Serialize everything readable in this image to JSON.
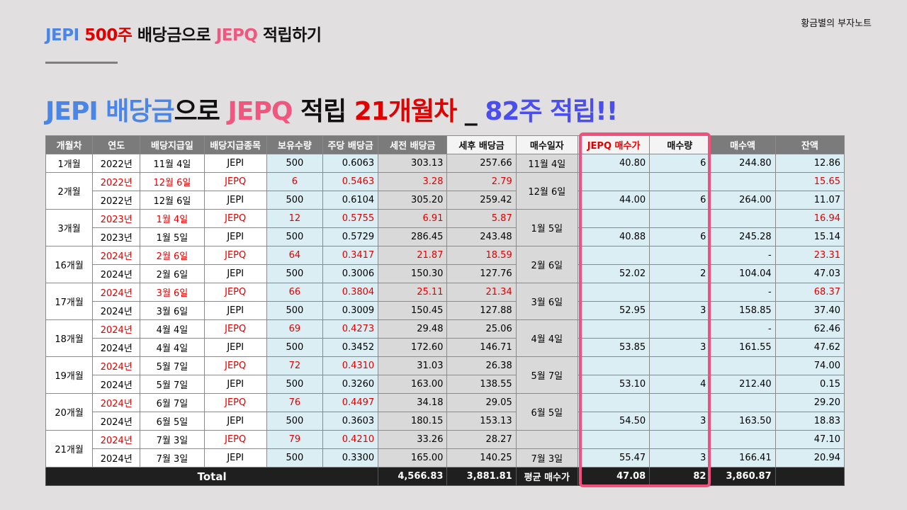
{
  "slide": {
    "top_title": [
      {
        "text": "JEPI",
        "color": "#4a86e8"
      },
      {
        "text": " 500주",
        "color": "#e00000"
      },
      {
        "text": " 배당금으로 ",
        "color": "#111111"
      },
      {
        "text": "JEPQ",
        "color": "#f0567e"
      },
      {
        "text": " 적립하기",
        "color": "#111111"
      }
    ],
    "brand": "황금별의 부자노트",
    "headline": [
      {
        "text": "JEPI 배당금",
        "color": "#4a86e8"
      },
      {
        "text": "으로 ",
        "color": "#111111"
      },
      {
        "text": "JEPQ",
        "color": "#f0567e"
      },
      {
        "text": " 적립 ",
        "color": "#111111"
      },
      {
        "text": "21개월차",
        "color": "#e00000"
      },
      {
        "text": " _ ",
        "color": "#111111"
      },
      {
        "text": "82주 적립!!",
        "color": "#4a4ef0"
      }
    ],
    "highlight_color": "#f0507e"
  },
  "table": {
    "headers": [
      "개월차",
      "연도",
      "배당지급일",
      "배당지급종목",
      "보유수량",
      "주당 배당금",
      "세전 배당금",
      "세후 배당금",
      "매수일자",
      "JEPQ 매수가",
      "매수량",
      "매수액",
      "잔액"
    ],
    "groups": [
      {
        "month": "1개월",
        "buy_date": "11월 4일",
        "rows": [
          {
            "year": "2022년",
            "pay_date": "11월 4일",
            "ticker": "JEPI",
            "shares": "500",
            "dps": "0.6063",
            "pretax": "303.13",
            "posttax": "257.66",
            "price": "40.80",
            "qty": "6",
            "amount": "244.80",
            "balance": "12.86",
            "red": false
          }
        ]
      },
      {
        "month": "2개월",
        "buy_date": "12월 6일",
        "rows": [
          {
            "year": "2022년",
            "pay_date": "12월 6일",
            "ticker": "JEPQ",
            "shares": "6",
            "dps": "0.5463",
            "pretax": "3.28",
            "posttax": "2.79",
            "price": "",
            "qty": "",
            "amount": "",
            "balance": "15.65",
            "red": true
          },
          {
            "year": "2022년",
            "pay_date": "12월 6일",
            "ticker": "JEPI",
            "shares": "500",
            "dps": "0.6104",
            "pretax": "305.20",
            "posttax": "259.42",
            "price": "44.00",
            "qty": "6",
            "amount": "264.00",
            "balance": "11.07",
            "red": false
          }
        ]
      },
      {
        "month": "3개월",
        "buy_date": "1월 5일",
        "rows": [
          {
            "year": "2023년",
            "pay_date": "1월 4일",
            "ticker": "JEPQ",
            "shares": "12",
            "dps": "0.5755",
            "pretax": "6.91",
            "posttax": "5.87",
            "price": "",
            "qty": "",
            "amount": "",
            "balance": "16.94",
            "red": true
          },
          {
            "year": "2023년",
            "pay_date": "1월 5일",
            "ticker": "JEPI",
            "shares": "500",
            "dps": "0.5729",
            "pretax": "286.45",
            "posttax": "243.48",
            "price": "40.88",
            "qty": "6",
            "amount": "245.28",
            "balance": "15.14",
            "red": false
          }
        ]
      },
      {
        "month": "16개월",
        "buy_date": "2월 6일",
        "rows": [
          {
            "year": "2024년",
            "pay_date": "2월 6일",
            "ticker": "JEPQ",
            "shares": "64",
            "dps": "0.3417",
            "pretax": "21.87",
            "posttax": "18.59",
            "price": "",
            "qty": "",
            "amount": "-",
            "balance": "23.31",
            "red": true
          },
          {
            "year": "2024년",
            "pay_date": "2월 6일",
            "ticker": "JEPI",
            "shares": "500",
            "dps": "0.3006",
            "pretax": "150.30",
            "posttax": "127.76",
            "price": "52.02",
            "qty": "2",
            "amount": "104.04",
            "balance": "47.03",
            "red": false
          }
        ]
      },
      {
        "month": "17개월",
        "buy_date": "3월 6일",
        "rows": [
          {
            "year": "2024년",
            "pay_date": "3월 6일",
            "ticker": "JEPQ",
            "shares": "66",
            "dps": "0.3804",
            "pretax": "25.11",
            "posttax": "21.34",
            "price": "",
            "qty": "",
            "amount": "-",
            "balance": "68.37",
            "red": true
          },
          {
            "year": "2024년",
            "pay_date": "3월 6일",
            "ticker": "JEPI",
            "shares": "500",
            "dps": "0.3009",
            "pretax": "150.45",
            "posttax": "127.88",
            "price": "52.95",
            "qty": "3",
            "amount": "158.85",
            "balance": "37.40",
            "red": false
          }
        ]
      },
      {
        "month": "18개월",
        "buy_date": "4월 4일",
        "rows": [
          {
            "year": "2024년",
            "pay_date": "4월 4일",
            "ticker": "JEPQ",
            "shares": "69",
            "dps": "0.4273",
            "pretax": "29.48",
            "posttax": "25.06",
            "price": "",
            "qty": "",
            "amount": "-",
            "balance": "62.46",
            "red": true,
            "partial_red": true
          },
          {
            "year": "2024년",
            "pay_date": "4월 4일",
            "ticker": "JEPI",
            "shares": "500",
            "dps": "0.3452",
            "pretax": "172.60",
            "posttax": "146.71",
            "price": "53.85",
            "qty": "3",
            "amount": "161.55",
            "balance": "47.62",
            "red": false
          }
        ]
      },
      {
        "month": "19개월",
        "buy_date": "5월 7일",
        "rows": [
          {
            "year": "2024년",
            "pay_date": "5월 7일",
            "ticker": "JEPQ",
            "shares": "72",
            "dps": "0.4310",
            "pretax": "31.03",
            "posttax": "26.38",
            "price": "",
            "qty": "",
            "amount": "",
            "balance": "74.00",
            "red": true,
            "partial_red": true
          },
          {
            "year": "2024년",
            "pay_date": "5월 7일",
            "ticker": "JEPI",
            "shares": "500",
            "dps": "0.3260",
            "pretax": "163.00",
            "posttax": "138.55",
            "price": "53.10",
            "qty": "4",
            "amount": "212.40",
            "balance": "0.15",
            "red": false
          }
        ]
      },
      {
        "month": "20개월",
        "buy_date": "6월 5일",
        "rows": [
          {
            "year": "2024년",
            "pay_date": "6월 7일",
            "ticker": "JEPQ",
            "shares": "76",
            "dps": "0.4497",
            "pretax": "34.18",
            "posttax": "29.05",
            "price": "",
            "qty": "",
            "amount": "",
            "balance": "29.20",
            "red": true,
            "partial_red": true
          },
          {
            "year": "2024년",
            "pay_date": "6월 5일",
            "ticker": "JEPI",
            "shares": "500",
            "dps": "0.3603",
            "pretax": "180.15",
            "posttax": "153.13",
            "price": "54.50",
            "qty": "3",
            "amount": "163.50",
            "balance": "18.83",
            "red": false
          }
        ]
      },
      {
        "month": "21개월",
        "buy_date": "7월 3일",
        "buy_date_row2_only": true,
        "rows": [
          {
            "year": "2024년",
            "pay_date": "7월 3일",
            "ticker": "JEPQ",
            "shares": "79",
            "dps": "0.4210",
            "pretax": "33.26",
            "posttax": "28.27",
            "price": "",
            "qty": "",
            "amount": "",
            "balance": "47.10",
            "red": true,
            "partial_red": true
          },
          {
            "year": "2024년",
            "pay_date": "7월 3일",
            "ticker": "JEPI",
            "shares": "500",
            "dps": "0.3300",
            "pretax": "165.00",
            "posttax": "140.25",
            "price": "55.47",
            "qty": "3",
            "amount": "166.41",
            "balance": "20.94",
            "red": false
          }
        ]
      }
    ],
    "total": {
      "label": "Total",
      "pretax": "4,566.83",
      "posttax": "3,881.81",
      "avg_label": "평균 매수가",
      "avg_price": "47.08",
      "qty": "82",
      "amount": "3,860.87",
      "balance": ""
    }
  }
}
